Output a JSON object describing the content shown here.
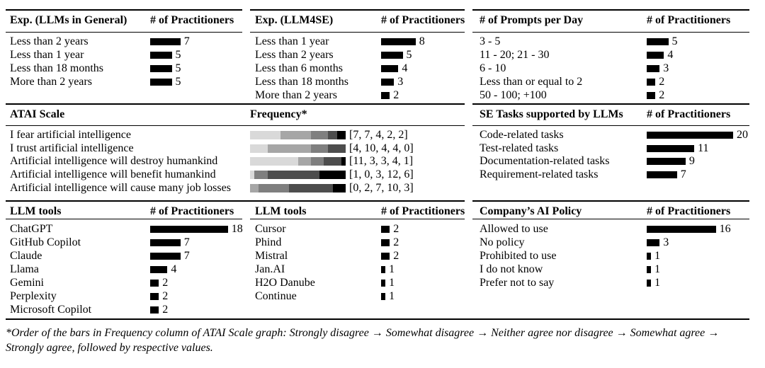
{
  "colors": {
    "bar": "#000000"
  },
  "chart_data": [
    {
      "type": "bar",
      "title": "Exp. (LLMs in General)",
      "value_header": "# of Practitioners",
      "categories": [
        "Less than 2 years",
        "Less than 1 year",
        "Less than 18 months",
        "More than 2 years"
      ],
      "values": [
        7,
        5,
        5,
        5
      ]
    },
    {
      "type": "bar",
      "title": "Exp. (LLM4SE)",
      "value_header": "# of Practitioners",
      "categories": [
        "Less than 1 year",
        "Less than 2 years",
        "Less than 6 months",
        "Less than 18 months",
        "More than 2 years"
      ],
      "values": [
        8,
        5,
        4,
        3,
        2
      ]
    },
    {
      "type": "bar",
      "title": "# of Prompts per Day",
      "value_header": "# of Practitioners",
      "categories": [
        "3 - 5",
        "11 - 20; 21 - 30",
        "6 - 10",
        "Less than or equal to 2",
        "50 - 100; +100"
      ],
      "values": [
        5,
        4,
        3,
        2,
        2
      ]
    },
    {
      "type": "stacked_bar",
      "title": "ATAI Scale",
      "value_header": "Frequency*",
      "categories": [
        "I fear artificial intelligence",
        "I trust artificial intelligence",
        "Artificial intelligence will destroy humankind",
        "Artificial intelligence will benefit humankind",
        "Artificial intelligence will cause many job losses"
      ],
      "values": [
        [
          7,
          7,
          4,
          2,
          2
        ],
        [
          4,
          10,
          4,
          4,
          0
        ],
        [
          11,
          3,
          3,
          4,
          1
        ],
        [
          1,
          0,
          3,
          12,
          6
        ],
        [
          0,
          2,
          7,
          10,
          3
        ]
      ],
      "stack_order": [
        "Strongly disagree",
        "Somewhat disagree",
        "Neither agree nor disagree",
        "Somewhat agree",
        "Strongly agree"
      ],
      "segment_colors": [
        "#d9d9d9",
        "#a6a6a6",
        "#7f7f7f",
        "#4d4d4d",
        "#000000"
      ]
    },
    {
      "type": "bar",
      "title": "SE Tasks supported by LLMs",
      "value_header": "# of Practitioners",
      "categories": [
        "Code-related tasks",
        "Test-related tasks",
        "Documentation-related tasks",
        "Requirement-related tasks"
      ],
      "values": [
        20,
        11,
        9,
        7
      ]
    },
    {
      "type": "bar",
      "title": "LLM tools",
      "value_header": "# of Practitioners",
      "categories": [
        "ChatGPT",
        "GitHub Copilot",
        "Claude",
        "Llama",
        "Gemini",
        "Perplexity",
        "Microsoft Copilot"
      ],
      "values": [
        18,
        7,
        7,
        4,
        2,
        2,
        2
      ]
    },
    {
      "type": "bar",
      "title": "LLM tools",
      "value_header": "# of Practitioners",
      "categories": [
        "Cursor",
        "Phind",
        "Mistral",
        "Jan.AI",
        "H2O Danube",
        "Continue"
      ],
      "values": [
        2,
        2,
        2,
        1,
        1,
        1
      ]
    },
    {
      "type": "bar",
      "title": "Company’s AI Policy",
      "value_header": "# of Practitioners",
      "categories": [
        "Allowed to use",
        "No policy",
        "Prohibited to use",
        "I do not know",
        "Prefer not to say"
      ],
      "values": [
        16,
        3,
        1,
        1,
        1
      ]
    }
  ],
  "footnote": "*Order of the bars in Frequency column of ATAI Scale graph: Strongly disagree → Somewhat disagree → Neither agree nor disagree → Somewhat agree → Strongly agree, followed by respective values."
}
